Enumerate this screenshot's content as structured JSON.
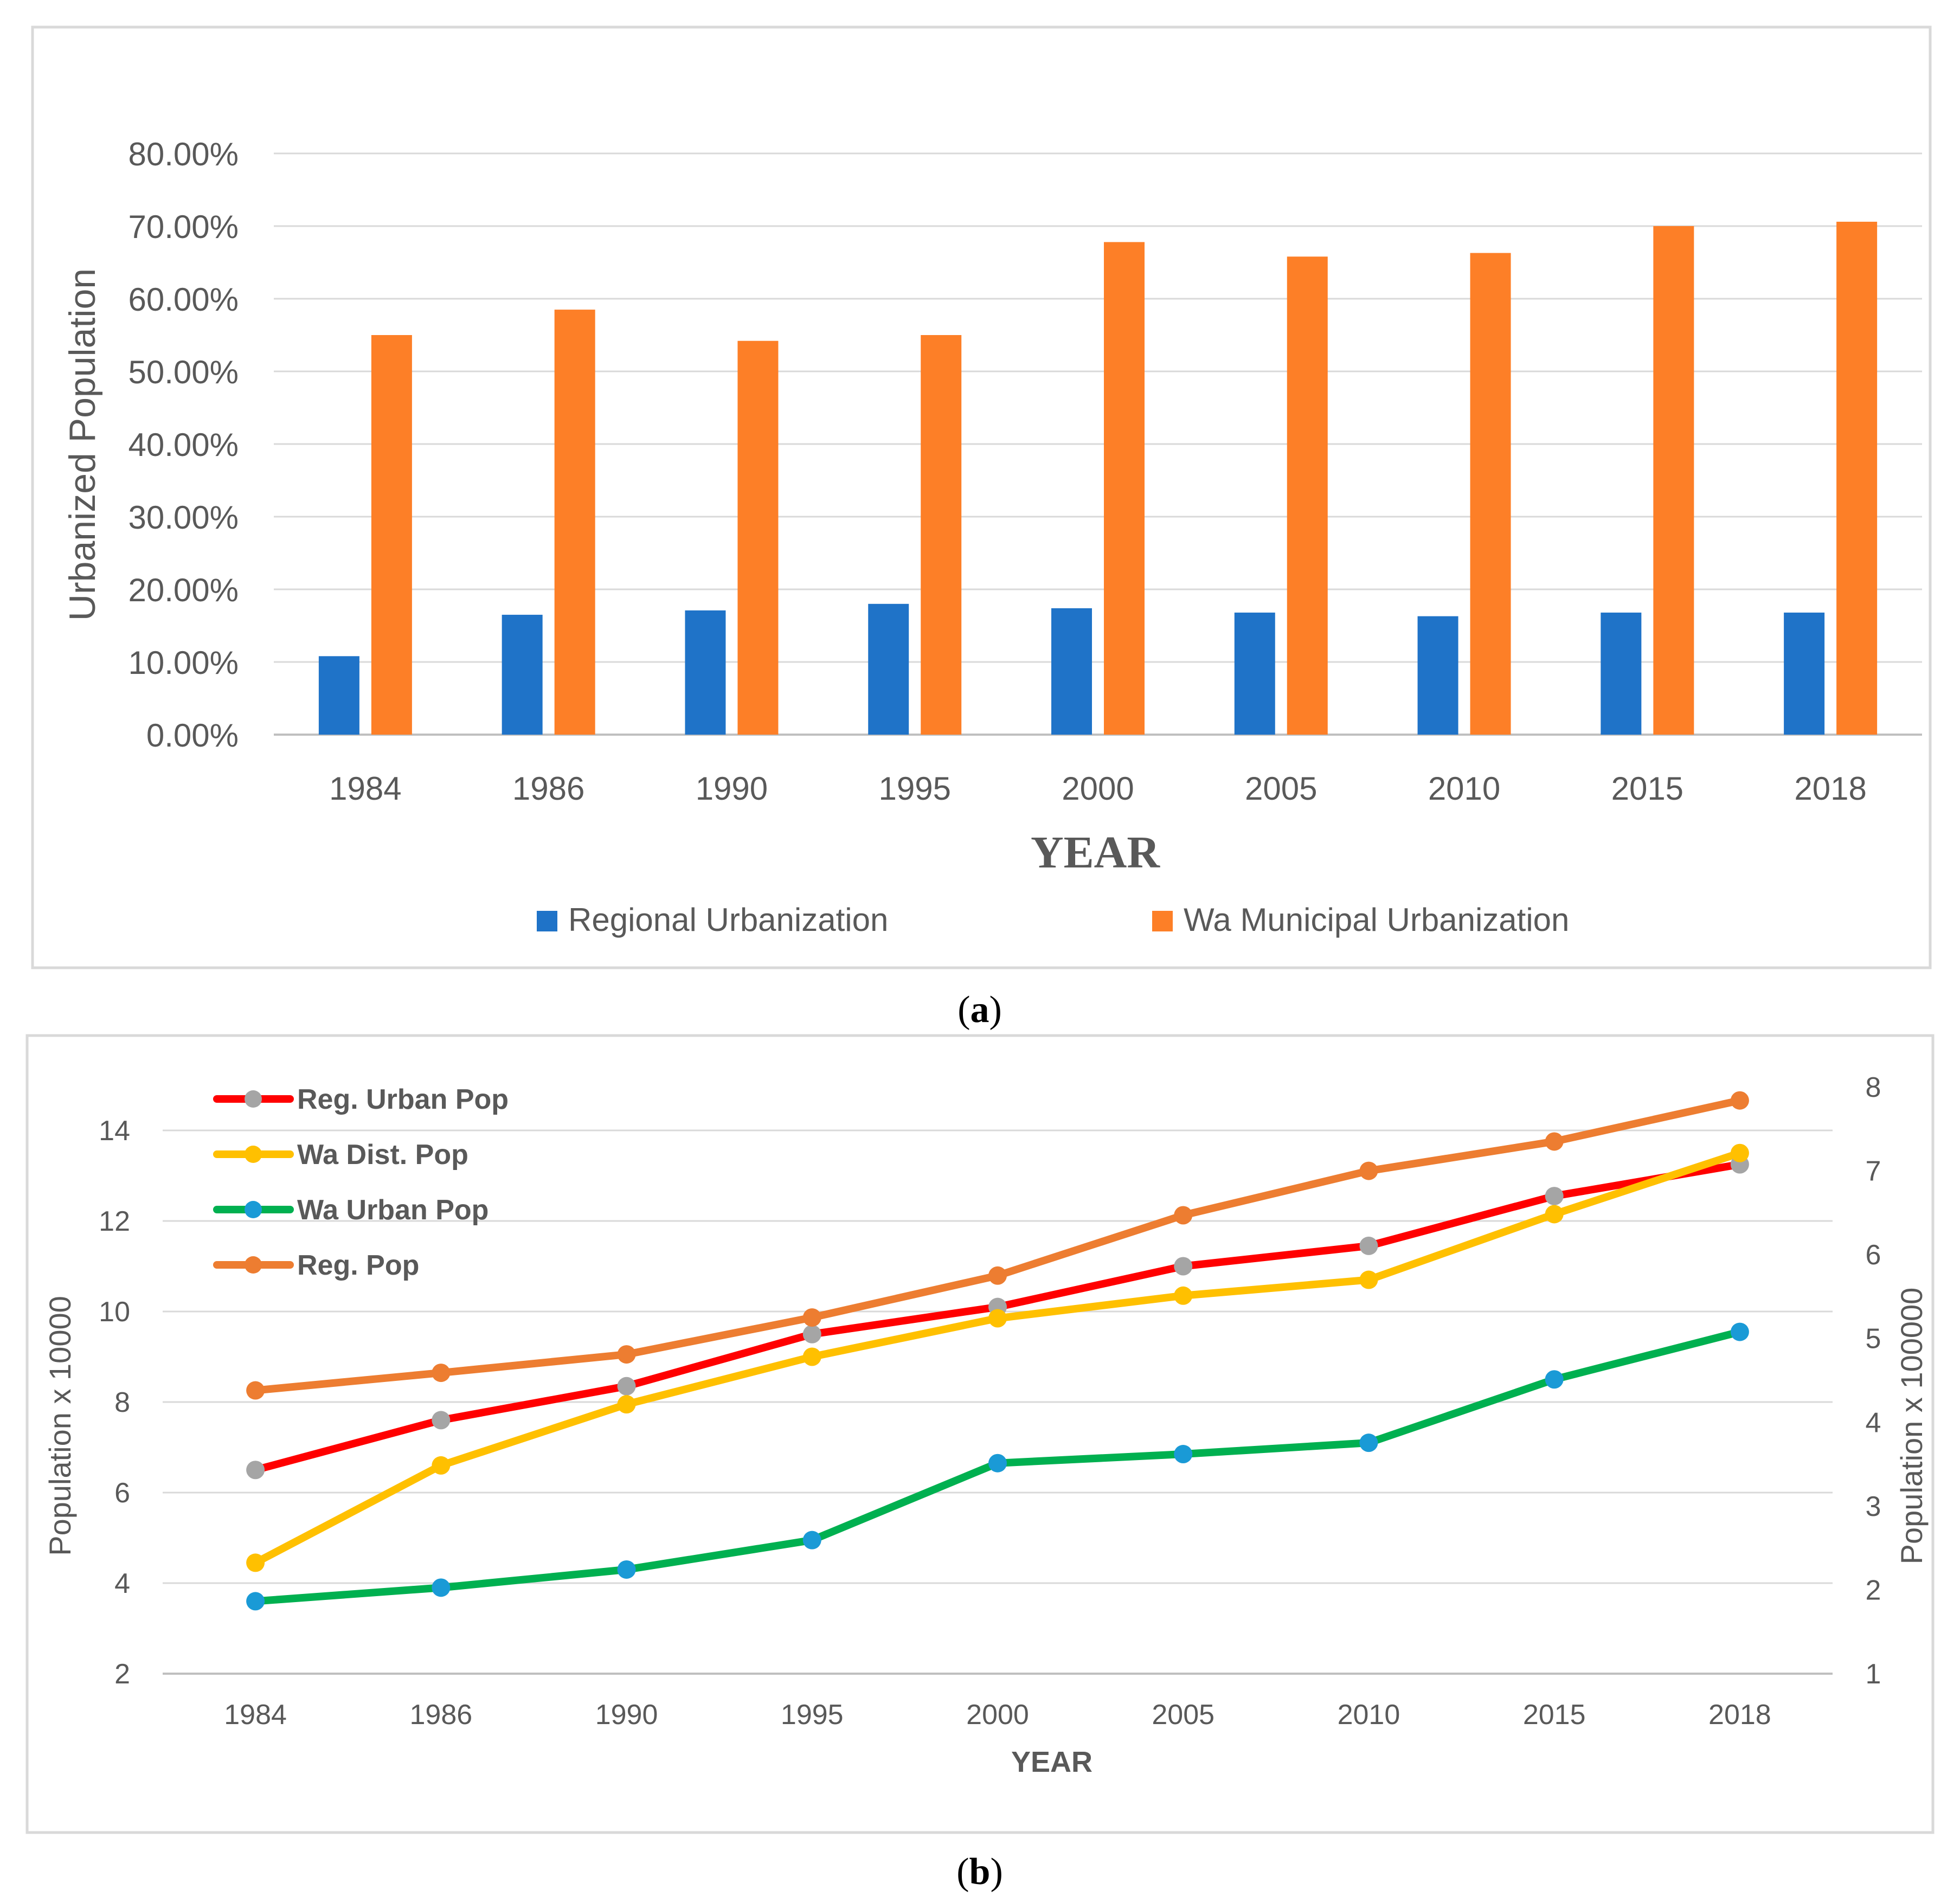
{
  "chart_data": [
    {
      "type": "bar",
      "panel_label": "a",
      "xlabel": "YEAR",
      "ylabel": "Urbanized Population",
      "ylim": [
        0,
        80
      ],
      "yticks": [
        "0.00%",
        "10.00%",
        "20.00%",
        "30.00%",
        "40.00%",
        "50.00%",
        "60.00%",
        "70.00%",
        "80.00%"
      ],
      "categories": [
        "1984",
        "1986",
        "1990",
        "1995",
        "2000",
        "2005",
        "2010",
        "2015",
        "2018"
      ],
      "series": [
        {
          "name": "Regional Urbanization",
          "color": "#1f73c8",
          "values": [
            10.8,
            16.5,
            17.1,
            18.0,
            17.4,
            16.8,
            16.3,
            16.8,
            16.8
          ]
        },
        {
          "name": "Wa Municipal Urbanization",
          "color": "#fd7f27",
          "values": [
            55.0,
            58.5,
            54.2,
            55.0,
            67.8,
            65.8,
            66.3,
            70.0,
            70.6
          ]
        }
      ],
      "legend_position": "bottom",
      "grid": true
    },
    {
      "type": "line",
      "panel_label": "b",
      "xlabel": "YEAR",
      "ylabel": "Population x 10000",
      "ylabel_right": "Population x 100000",
      "ylim": [
        2,
        14
      ],
      "yticks": [
        "2",
        "4",
        "6",
        "8",
        "10",
        "12",
        "14"
      ],
      "ylim_right": [
        1,
        8
      ],
      "yticks_right": [
        "1",
        "2",
        "3",
        "4",
        "5",
        "6",
        "7",
        "8"
      ],
      "categories": [
        "1984",
        "1986",
        "1990",
        "1995",
        "2000",
        "2005",
        "2010",
        "2015",
        "2018"
      ],
      "series": [
        {
          "name": "Reg. Urban Pop",
          "axis": "left",
          "color": "#ff0000",
          "marker_color": "#a5a5a5",
          "values": [
            6.5,
            7.6,
            8.35,
            9.5,
            10.1,
            11.0,
            11.45,
            12.55,
            13.25
          ]
        },
        {
          "name": "Wa Dist. Pop",
          "axis": "left",
          "color": "#ffc000",
          "marker_color": "#ffc000",
          "values": [
            4.45,
            6.6,
            7.95,
            9.0,
            9.85,
            10.35,
            10.7,
            12.15,
            13.5
          ]
        },
        {
          "name": "Wa Urban Pop",
          "axis": "left",
          "color": "#00b050",
          "marker_color": "#1a9ad6",
          "values": [
            3.6,
            3.9,
            4.3,
            4.95,
            6.65,
            6.85,
            7.1,
            8.5,
            9.55
          ]
        },
        {
          "name": "Reg. Pop",
          "axis": "right",
          "color": "#ed7d31",
          "marker_color": "#ed7d31",
          "values": [
            4.38,
            4.59,
            4.81,
            5.25,
            5.75,
            6.47,
            7.0,
            7.35,
            7.84
          ]
        }
      ],
      "legend_position": "top-left",
      "grid": true
    }
  ]
}
